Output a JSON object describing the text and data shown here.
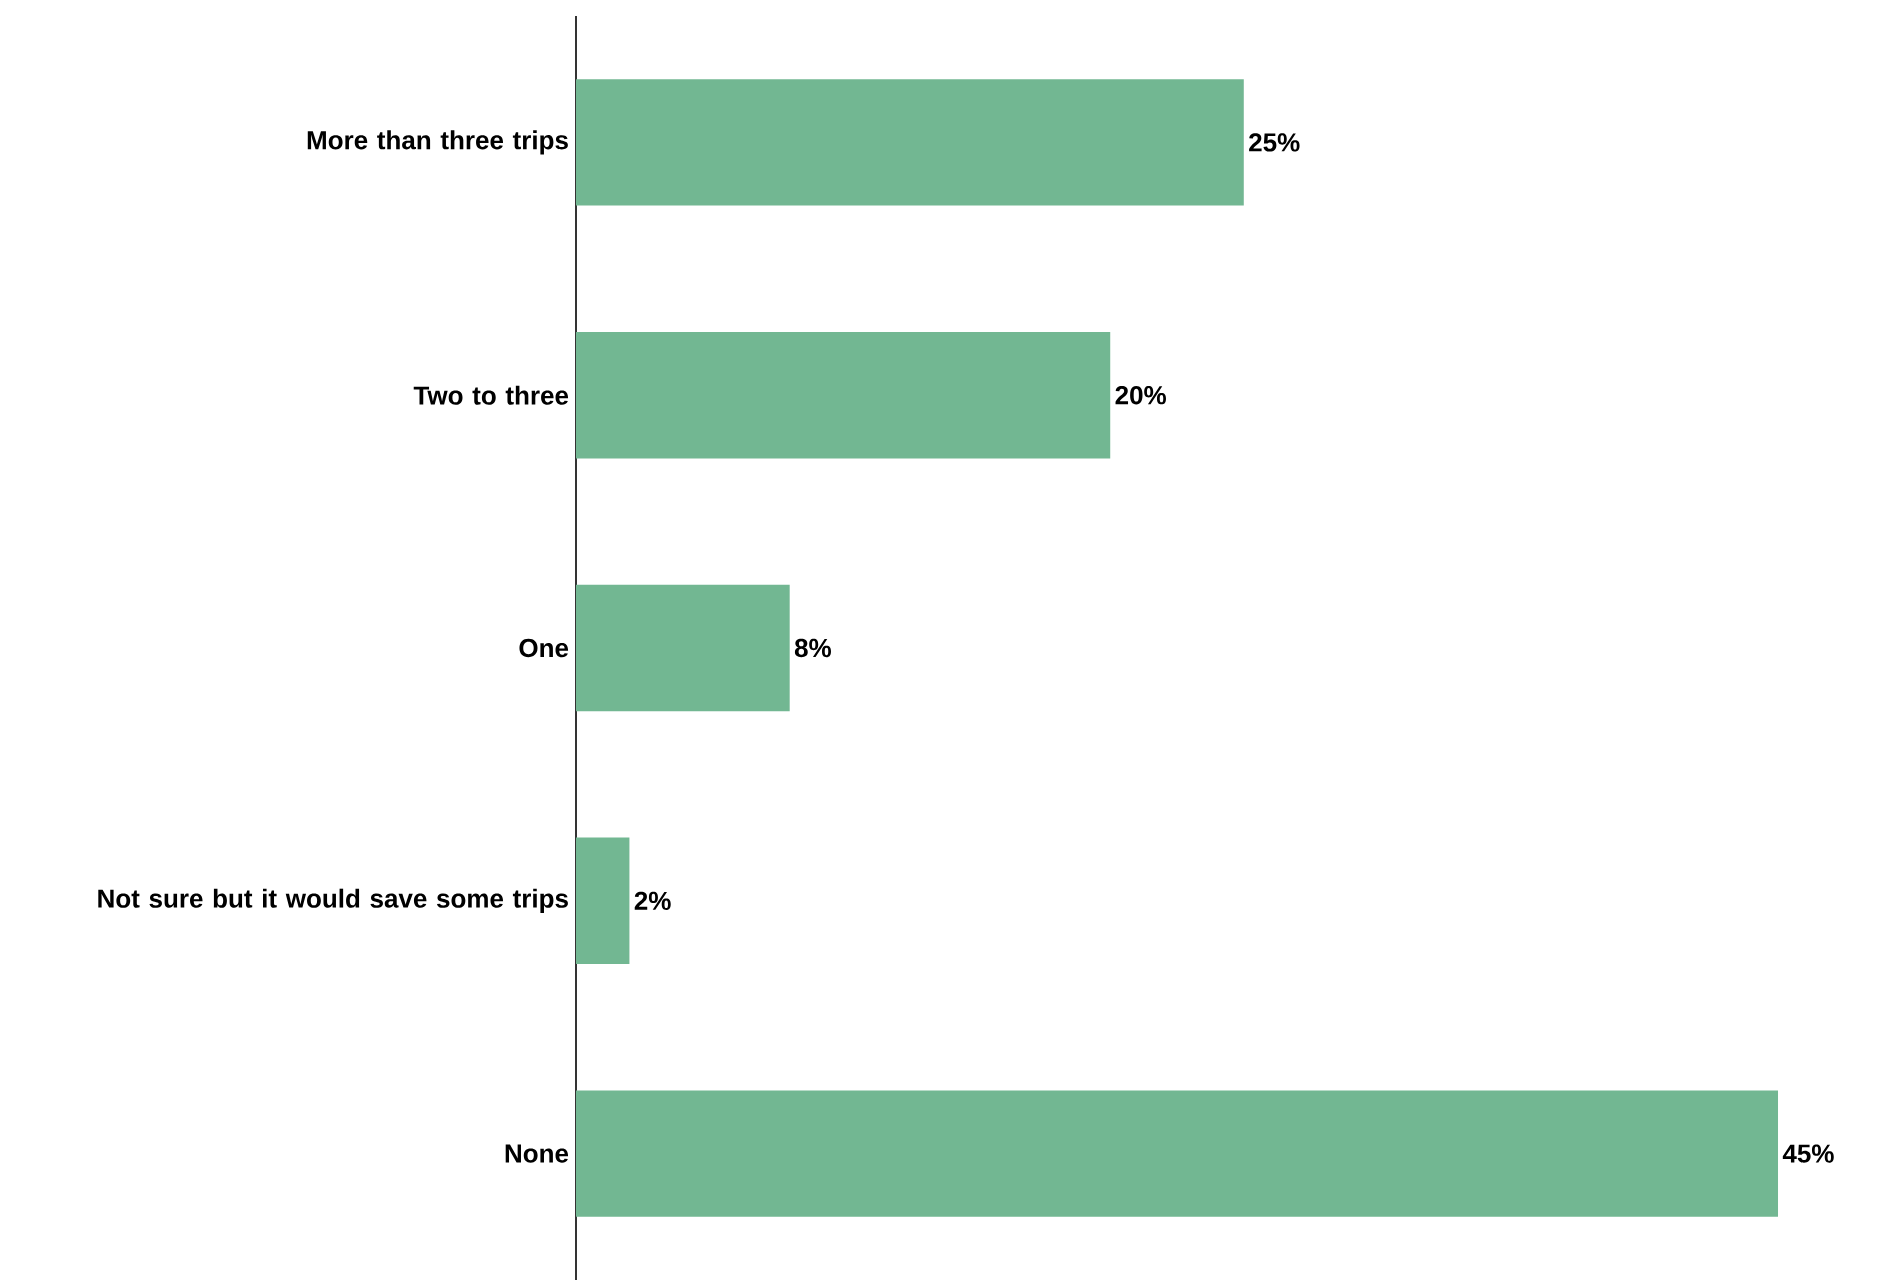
{
  "chart_data": {
    "type": "bar",
    "orientation": "horizontal",
    "categories": [
      "More than three trips",
      "Two to three",
      "One",
      "Not sure but it would save some trips",
      "None"
    ],
    "values": [
      25,
      20,
      8,
      2,
      45
    ],
    "value_labels": [
      "25%",
      "20%",
      "8%",
      "2%",
      "45%"
    ],
    "color": "#72b792"
  }
}
